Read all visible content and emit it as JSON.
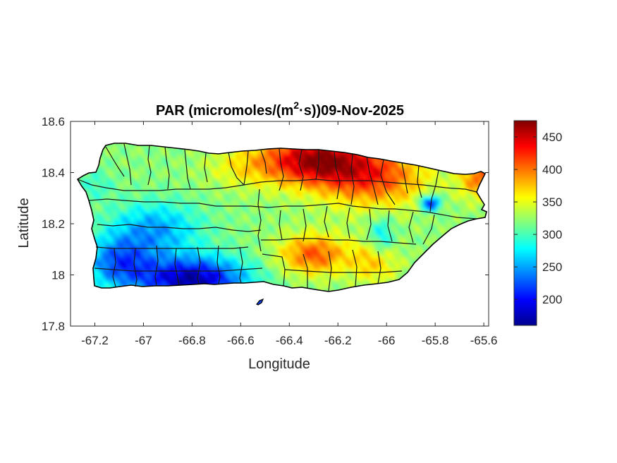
{
  "chart_data": {
    "type": "heatmap",
    "title_main": "PAR (micromoles/(m",
    "title_sup": "2",
    "title_rest": "·s))09-Nov-2025",
    "xlabel": "Longitude",
    "ylabel": "Latitude",
    "xlim": [
      -67.3,
      -65.58
    ],
    "ylim": [
      17.8,
      18.6
    ],
    "xticks": [
      -67.2,
      -67,
      -66.8,
      -66.6,
      -66.4,
      -66.2,
      -66,
      -65.8,
      -65.6
    ],
    "xtick_labels": [
      "-67.2",
      "-67",
      "-66.8",
      "-66.6",
      "-66.4",
      "-66.2",
      "-66",
      "-65.8",
      "-65.6"
    ],
    "yticks": [
      17.8,
      18,
      18.2,
      18.4,
      18.6
    ],
    "ytick_labels": [
      "17.8",
      "18",
      "18.2",
      "18.4",
      "18.6"
    ],
    "colorbar": {
      "colormap": "jet",
      "clim": [
        160,
        475
      ],
      "ticks": [
        200,
        250,
        300,
        350,
        400,
        450
      ],
      "tick_labels": [
        "200",
        "250",
        "300",
        "350",
        "400",
        "450"
      ]
    },
    "field_pattern": "Highest PAR (~450-475) along the north-central coast near -66.3; lowest (~170-200) on the south-west coast near -66.8 to -66.6; moderate (~300-350) in the interior and west; localized minimum (~200) near -65.8, 18.28."
  }
}
